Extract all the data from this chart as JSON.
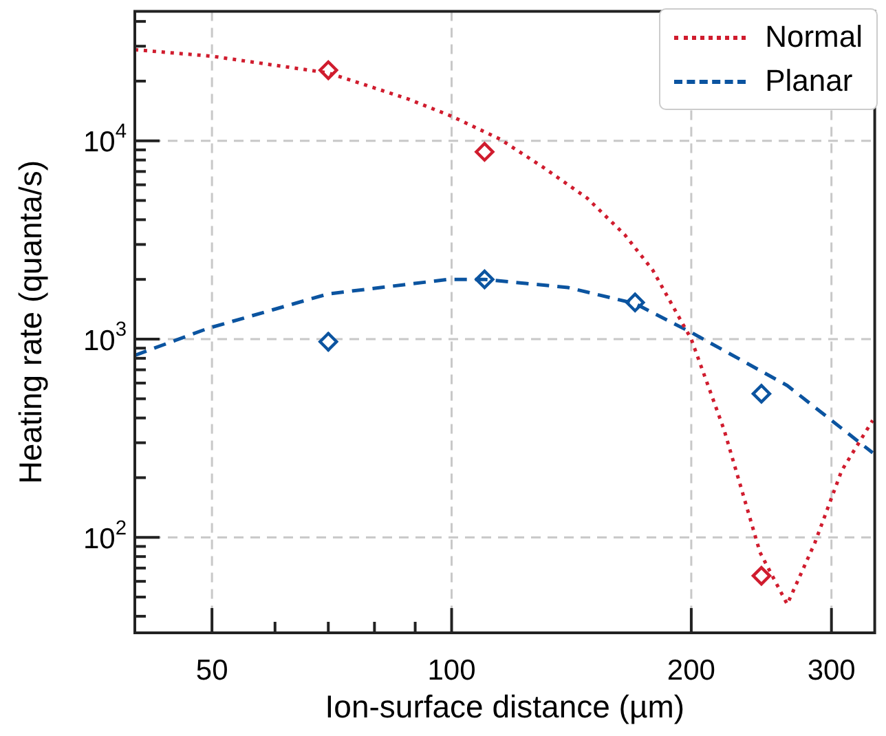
{
  "chart_data": {
    "type": "line",
    "xlabel": "Ion-surface distance (µm)",
    "ylabel": "Heating rate (quanta/s)",
    "log": "xy",
    "grid": true,
    "legend": "top right",
    "xlim": [
      40,
      340
    ],
    "ylim": [
      33,
      45000
    ],
    "xticks": [
      50,
      {
        "value": 60,
        "label": null
      },
      {
        "value": 70,
        "label": null
      },
      {
        "value": 80,
        "label": null
      },
      {
        "value": 90,
        "label": null
      },
      100,
      200,
      300
    ],
    "yticks": [
      {
        "value": 40,
        "label": null
      },
      {
        "value": 50,
        "label": null
      },
      {
        "value": 60,
        "label": null
      },
      {
        "value": 70,
        "label": null
      },
      {
        "value": 80,
        "label": null
      },
      {
        "value": 90,
        "label": null
      },
      {
        "value": 100,
        "label": "10$^{2}$"
      },
      {
        "value": 200,
        "label": null
      },
      {
        "value": 300,
        "label": null
      },
      {
        "value": 400,
        "label": null
      },
      {
        "value": 500,
        "label": null
      },
      {
        "value": 600,
        "label": null
      },
      {
        "value": 700,
        "label": null
      },
      {
        "value": 800,
        "label": null
      },
      {
        "value": 900,
        "label": null
      },
      {
        "value": 1000,
        "label": "10$^{3}$"
      },
      {
        "value": 2000,
        "label": null
      },
      {
        "value": 3000,
        "label": null
      },
      {
        "value": 4000,
        "label": null
      },
      {
        "value": 5000,
        "label": null
      },
      {
        "value": 6000,
        "label": null
      },
      {
        "value": 7000,
        "label": null
      },
      {
        "value": 8000,
        "label": null
      },
      {
        "value": 9000,
        "label": null
      },
      {
        "value": 10000,
        "label": "10$^{4}$"
      },
      {
        "value": 20000,
        "label": null
      },
      {
        "value": 30000,
        "label": null
      },
      {
        "value": 40000,
        "label": null
      }
    ],
    "series": [
      {
        "name": "Normal",
        "color": "#d01c2e",
        "line_style": "dotted",
        "marker": "none",
        "x": [
          40,
          50,
          70,
          88,
          100,
          115,
          130,
          148,
          165,
          179,
          193,
          200,
          220,
          244,
          264,
          286,
          309,
          338
        ],
        "values": [
          28800,
          26700,
          22000,
          16300,
          13300,
          10200,
          7400,
          5140,
          3360,
          2220,
          1290,
          1000,
          347,
          84,
          46,
          94,
          217,
          389
        ]
      },
      {
        "type": "scatter",
        "color": "#d01c2e",
        "marker": "diamond",
        "x": [
          70,
          110,
          245
        ],
        "values": [
          22700,
          8800,
          64
        ],
        "errors": [
          null,
          null,
          [
            59,
            70
          ]
        ]
      },
      {
        "name": "Planar",
        "color": "#0b54a0",
        "line_style": "dashed",
        "marker": "none",
        "x": [
          40,
          49.5,
          70,
          99,
          110,
          140,
          170,
          200,
          264,
          338
        ],
        "values": [
          828,
          1135,
          1690,
          2000,
          2000,
          1820,
          1510,
          1080,
          583,
          267
        ]
      },
      {
        "type": "scatter",
        "color": "#0b54a0",
        "marker": "diamond",
        "x": [
          70,
          110,
          170,
          245
        ],
        "values": [
          970,
          2000,
          1530,
          530
        ],
        "errors": [
          [
            870,
            1080
          ],
          null,
          null,
          [
            480,
            590
          ]
        ]
      }
    ]
  }
}
